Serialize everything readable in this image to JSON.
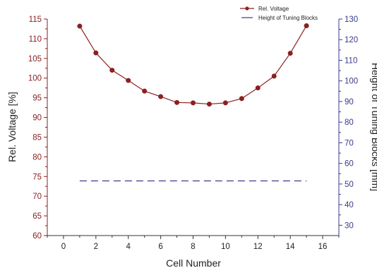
{
  "chart_data": {
    "type": "line",
    "xlabel": "Cell Number",
    "ylabel_left": "Rel. Voltage [%]",
    "ylabel_right": "Height of Tuning Blocks [mm]",
    "xlim": [
      -1,
      17
    ],
    "ylim_left": [
      60,
      115
    ],
    "ylim_right": [
      25,
      130
    ],
    "x_ticks": [
      "0",
      "2",
      "4",
      "6",
      "8",
      "10",
      "12",
      "14",
      "16"
    ],
    "y_ticks_left": [
      "60",
      "65",
      "70",
      "75",
      "80",
      "85",
      "90",
      "95",
      "100",
      "105",
      "110",
      "115"
    ],
    "y_ticks_right": [
      "30",
      "40",
      "50",
      "60",
      "70",
      "80",
      "90",
      "100",
      "110",
      "120",
      "130"
    ],
    "legend_position": "top-right",
    "grid": false,
    "series": [
      {
        "name": "Rel. Voltage",
        "axis": "left",
        "color": "#8b2020",
        "style": "line-with-markers",
        "x": [
          1,
          2,
          3,
          4,
          5,
          6,
          7,
          8,
          9,
          10,
          11,
          12,
          13,
          14,
          15
        ],
        "y": [
          113.2,
          106.4,
          102.0,
          99.4,
          96.7,
          95.3,
          93.8,
          93.7,
          93.4,
          93.7,
          94.8,
          97.5,
          100.5,
          106.3,
          113.3
        ]
      },
      {
        "name": "Height of Tuning Blocks",
        "axis": "right",
        "color": "#3a3a8c",
        "style": "dashed",
        "x": [
          1,
          2,
          3,
          4,
          5,
          6,
          7,
          8,
          9,
          10,
          11,
          12,
          13,
          14,
          15
        ],
        "y": [
          51.5,
          51.5,
          51.5,
          51.5,
          51.5,
          51.5,
          51.5,
          51.5,
          51.5,
          51.5,
          51.5,
          51.5,
          51.5,
          51.5,
          51.5
        ]
      }
    ]
  },
  "colors": {
    "left_axis": "#8b2020",
    "right_axis": "#3a3a8c",
    "bottom_axis": "#333333"
  }
}
